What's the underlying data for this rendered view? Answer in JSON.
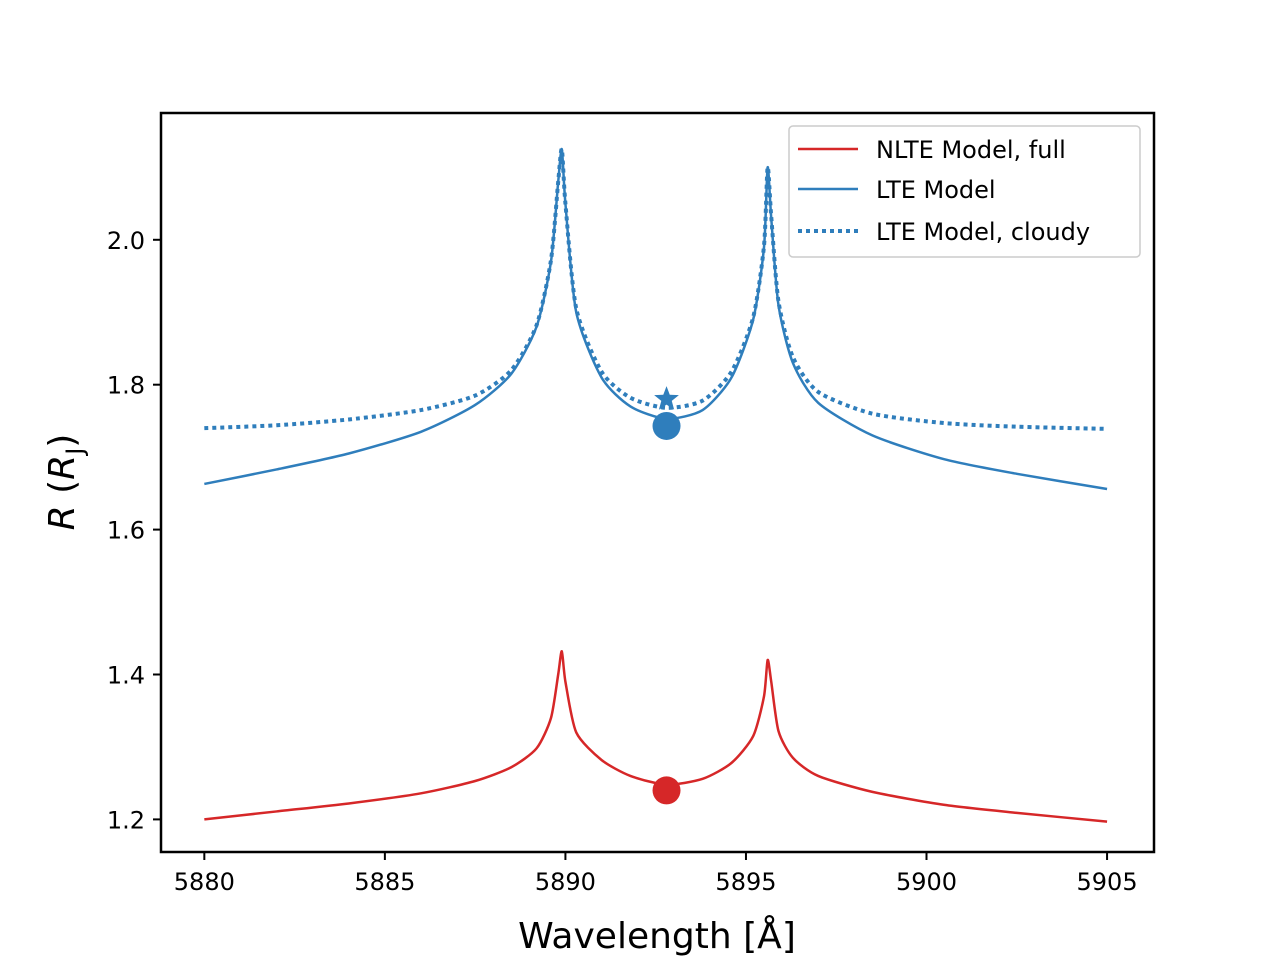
{
  "chart_data": {
    "type": "line",
    "xlabel": "Wavelength [Å]",
    "ylabel": "R (R_J)",
    "xlim": [
      5878.8,
      5906.3
    ],
    "ylim": [
      1.155,
      2.175
    ],
    "xticks": [
      5880,
      5885,
      5890,
      5895,
      5900,
      5905
    ],
    "yticks": [
      1.2,
      1.4,
      1.6,
      1.8,
      2.0
    ],
    "grid": false,
    "legend_position": "upper right",
    "colors": {
      "red": "#d62728",
      "blue": "#2f7ebc"
    },
    "series": [
      {
        "name": "NLTE Model, full",
        "style": "solid",
        "color": "#d62728",
        "x": [
          5880.0,
          5882.0,
          5884.0,
          5886.0,
          5887.5,
          5888.5,
          5889.2,
          5889.6,
          5889.8,
          5889.9,
          5890.0,
          5890.3,
          5891.0,
          5891.8,
          5892.8,
          5893.8,
          5894.6,
          5895.2,
          5895.5,
          5895.6,
          5895.7,
          5895.9,
          5896.3,
          5897.0,
          5898.5,
          5900.5,
          5902.5,
          5905.0
        ],
        "y": [
          1.2,
          1.211,
          1.222,
          1.236,
          1.253,
          1.272,
          1.298,
          1.34,
          1.4,
          1.432,
          1.39,
          1.32,
          1.282,
          1.26,
          1.248,
          1.256,
          1.278,
          1.315,
          1.37,
          1.42,
          1.39,
          1.322,
          1.285,
          1.26,
          1.238,
          1.22,
          1.209,
          1.197
        ]
      },
      {
        "name": "LTE Model",
        "style": "solid",
        "color": "#2f7ebc",
        "x": [
          5880.0,
          5882.0,
          5884.0,
          5886.0,
          5887.5,
          5888.5,
          5889.2,
          5889.6,
          5889.8,
          5889.9,
          5890.0,
          5890.3,
          5891.0,
          5891.8,
          5892.8,
          5893.8,
          5894.6,
          5895.2,
          5895.5,
          5895.6,
          5895.7,
          5895.9,
          5896.3,
          5897.0,
          5898.5,
          5900.5,
          5902.5,
          5905.0
        ],
        "y": [
          1.663,
          1.683,
          1.705,
          1.735,
          1.772,
          1.815,
          1.88,
          1.97,
          2.08,
          2.125,
          2.05,
          1.9,
          1.81,
          1.77,
          1.753,
          1.765,
          1.81,
          1.89,
          1.99,
          2.1,
          2.03,
          1.91,
          1.83,
          1.775,
          1.73,
          1.697,
          1.677,
          1.656
        ]
      },
      {
        "name": "LTE Model, cloudy",
        "style": "dotted",
        "color": "#2f7ebc",
        "x": [
          5880.0,
          5882.0,
          5884.0,
          5886.0,
          5887.5,
          5888.5,
          5889.2,
          5889.6,
          5889.8,
          5889.9,
          5890.0,
          5890.3,
          5891.0,
          5891.8,
          5892.8,
          5893.8,
          5894.6,
          5895.2,
          5895.5,
          5895.6,
          5895.7,
          5895.9,
          5896.3,
          5897.0,
          5898.5,
          5900.5,
          5902.5,
          5905.0
        ],
        "y": [
          1.74,
          1.744,
          1.752,
          1.765,
          1.785,
          1.82,
          1.882,
          1.972,
          2.08,
          2.125,
          2.05,
          1.905,
          1.818,
          1.782,
          1.768,
          1.778,
          1.818,
          1.893,
          1.992,
          2.1,
          2.032,
          1.915,
          1.838,
          1.79,
          1.76,
          1.747,
          1.742,
          1.739
        ]
      }
    ],
    "markers": [
      {
        "shape": "circle",
        "color": "#d62728",
        "x": 5892.8,
        "y": 1.24
      },
      {
        "shape": "circle",
        "color": "#2f7ebc",
        "x": 5892.8,
        "y": 1.743
      },
      {
        "shape": "star",
        "color": "#2f7ebc",
        "x": 5892.8,
        "y": 1.78
      }
    ]
  }
}
